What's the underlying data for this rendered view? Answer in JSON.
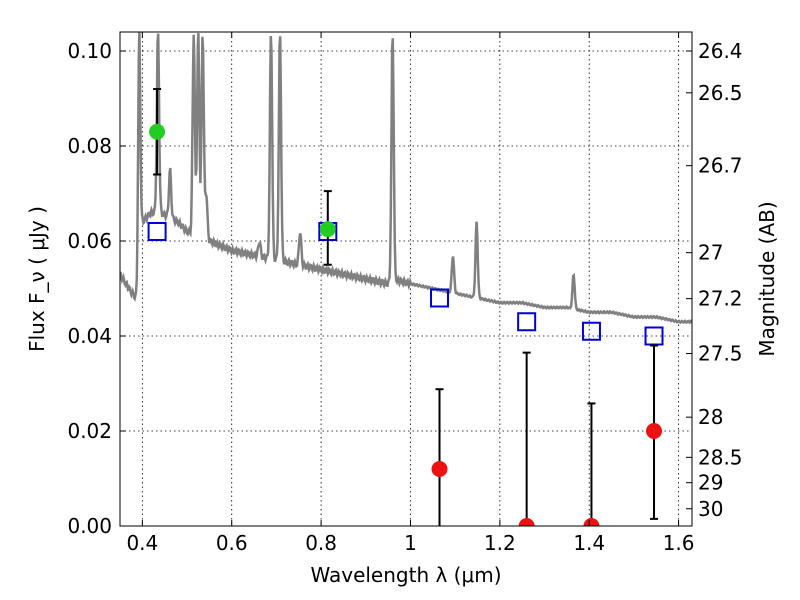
{
  "chart_data": {
    "type": "scatter",
    "xlabel": "Wavelength  λ (μm)",
    "ylabel": "Flux  F_ν  ( μJy )",
    "y2label": "Magnitude (AB)",
    "xlim": [
      0.35,
      1.63
    ],
    "ylim": [
      0.0,
      0.104
    ],
    "grid": true,
    "x_ticks": [
      {
        "value": 0.4,
        "label": "0.4"
      },
      {
        "value": 0.6,
        "label": "0.6"
      },
      {
        "value": 0.8,
        "label": "0.8"
      },
      {
        "value": 1.0,
        "label": "1"
      },
      {
        "value": 1.2,
        "label": "1.2"
      },
      {
        "value": 1.4,
        "label": "1.4"
      },
      {
        "value": 1.6,
        "label": "1.6"
      }
    ],
    "y_ticks": [
      {
        "value": 0.0,
        "label": "0.00"
      },
      {
        "value": 0.02,
        "label": "0.02"
      },
      {
        "value": 0.04,
        "label": "0.04"
      },
      {
        "value": 0.06,
        "label": "0.06"
      },
      {
        "value": 0.08,
        "label": "0.08"
      },
      {
        "value": 0.1,
        "label": "0.10"
      }
    ],
    "mag_ticks": [
      {
        "mag": 26.4,
        "label": "26.4"
      },
      {
        "mag": 26.5,
        "label": "26.5"
      },
      {
        "mag": 26.7,
        "label": "26.7"
      },
      {
        "mag": 27.0,
        "label": "27"
      },
      {
        "mag": 27.2,
        "label": "27.2"
      },
      {
        "mag": 27.5,
        "label": "27.5"
      },
      {
        "mag": 28.0,
        "label": "28"
      },
      {
        "mag": 28.5,
        "label": "28.5"
      },
      {
        "mag": 29.0,
        "label": "29"
      },
      {
        "mag": 30.0,
        "label": "30"
      }
    ],
    "sed_model": {
      "color": "#808080",
      "x": [
        0.35,
        0.37,
        0.385,
        0.39,
        0.395,
        0.4,
        0.42,
        0.44,
        0.46,
        0.48,
        0.5,
        0.55,
        0.6,
        0.65,
        0.7,
        0.75,
        0.8,
        0.85,
        0.9,
        0.95,
        0.96,
        1.0,
        1.05,
        1.1,
        1.15,
        1.2,
        1.25,
        1.3,
        1.35,
        1.4,
        1.45,
        1.5,
        1.55,
        1.6,
        1.63
      ],
      "y": [
        0.053,
        0.05,
        0.048,
        0.047,
        0.055,
        0.064,
        0.066,
        0.066,
        0.065,
        0.064,
        0.062,
        0.06,
        0.058,
        0.057,
        0.056,
        0.055,
        0.054,
        0.053,
        0.052,
        0.051,
        0.052,
        0.051,
        0.05,
        0.049,
        0.048,
        0.047,
        0.047,
        0.046,
        0.046,
        0.045,
        0.045,
        0.044,
        0.044,
        0.043,
        0.043
      ],
      "emission_lines": [
        {
          "x": 0.393,
          "peak": 0.104
        },
        {
          "x": 0.435,
          "peak": 0.104
        },
        {
          "x": 0.462,
          "peak": 0.075
        },
        {
          "x": 0.515,
          "peak": 0.104
        },
        {
          "x": 0.525,
          "peak": 0.104
        },
        {
          "x": 0.535,
          "peak": 0.104
        },
        {
          "x": 0.543,
          "peak": 0.07
        },
        {
          "x": 0.662,
          "peak": 0.06
        },
        {
          "x": 0.688,
          "peak": 0.104
        },
        {
          "x": 0.708,
          "peak": 0.104
        },
        {
          "x": 0.753,
          "peak": 0.062
        },
        {
          "x": 0.96,
          "peak": 0.104
        },
        {
          "x": 1.095,
          "peak": 0.057
        },
        {
          "x": 1.148,
          "peak": 0.064
        },
        {
          "x": 1.365,
          "peak": 0.053
        }
      ]
    },
    "series": [
      {
        "marker": "open-square",
        "color": "#0000cc",
        "x": [
          0.433,
          0.815,
          1.065,
          1.26,
          1.405,
          1.545
        ],
        "y": [
          0.062,
          0.062,
          0.048,
          0.043,
          0.041,
          0.04
        ]
      },
      {
        "marker": "filled-circle",
        "color": "#22cc22",
        "x": [
          0.433,
          0.815
        ],
        "y": [
          0.083,
          0.0625
        ],
        "yerr_low": [
          0.074,
          0.055
        ],
        "yerr_high": [
          0.092,
          0.0705
        ]
      },
      {
        "marker": "filled-circle",
        "color": "#ee1111",
        "x": [
          1.065,
          1.26,
          1.405,
          1.545
        ],
        "y": [
          0.012,
          0.0,
          0.0,
          0.02
        ],
        "yerr_low": [
          0.0,
          0.0,
          0.0,
          0.0015
        ],
        "yerr_high": [
          0.0288,
          0.0365,
          0.0258,
          0.038
        ]
      }
    ]
  }
}
